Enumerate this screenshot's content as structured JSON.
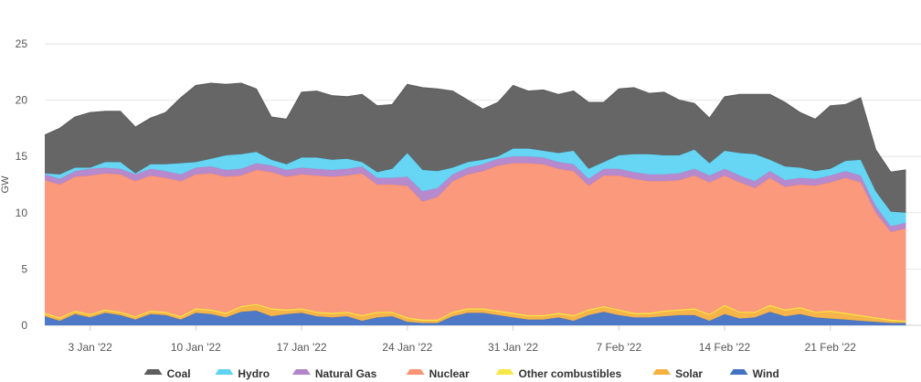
{
  "chart_data": {
    "type": "area",
    "stacked": true,
    "ylabel": "GW",
    "ylim": [
      0,
      25
    ],
    "y_ticks": [
      0,
      5,
      10,
      15,
      20,
      25
    ],
    "grid": true,
    "legend_position": "bottom",
    "x_range": [
      "2021-12-31",
      "2022-02-27"
    ],
    "x_ticks": [
      {
        "date": "2022-01-03",
        "label": "3 Jan '22"
      },
      {
        "date": "2022-01-10",
        "label": "10 Jan '22"
      },
      {
        "date": "2022-01-17",
        "label": "17 Jan '22"
      },
      {
        "date": "2022-01-24",
        "label": "24 Jan '22"
      },
      {
        "date": "2022-01-31",
        "label": "31 Jan '22"
      },
      {
        "date": "2022-02-07",
        "label": "7 Feb '22"
      },
      {
        "date": "2022-02-14",
        "label": "14 Feb '22"
      },
      {
        "date": "2022-02-21",
        "label": "21 Feb '22"
      }
    ],
    "x": [
      "2021-12-31",
      "2022-01-01",
      "2022-01-02",
      "2022-01-03",
      "2022-01-04",
      "2022-01-05",
      "2022-01-06",
      "2022-01-07",
      "2022-01-08",
      "2022-01-09",
      "2022-01-10",
      "2022-01-11",
      "2022-01-12",
      "2022-01-13",
      "2022-01-14",
      "2022-01-15",
      "2022-01-16",
      "2022-01-17",
      "2022-01-18",
      "2022-01-19",
      "2022-01-20",
      "2022-01-21",
      "2022-01-22",
      "2022-01-23",
      "2022-01-24",
      "2022-01-25",
      "2022-01-26",
      "2022-01-27",
      "2022-01-28",
      "2022-01-29",
      "2022-01-30",
      "2022-01-31",
      "2022-02-01",
      "2022-02-02",
      "2022-02-03",
      "2022-02-04",
      "2022-02-05",
      "2022-02-06",
      "2022-02-07",
      "2022-02-08",
      "2022-02-09",
      "2022-02-10",
      "2022-02-11",
      "2022-02-12",
      "2022-02-13",
      "2022-02-14",
      "2022-02-15",
      "2022-02-16",
      "2022-02-17",
      "2022-02-18",
      "2022-02-19",
      "2022-02-20",
      "2022-02-21",
      "2022-02-22",
      "2022-02-23",
      "2022-02-24",
      "2022-02-25",
      "2022-02-26"
    ],
    "series": [
      {
        "name": "Wind",
        "color": "#4472c4",
        "values": [
          0.8,
          0.4,
          1.0,
          0.7,
          1.1,
          0.9,
          0.5,
          1.0,
          0.9,
          0.5,
          1.1,
          1.0,
          0.7,
          1.2,
          1.3,
          0.8,
          1.0,
          1.1,
          0.8,
          0.7,
          0.8,
          0.4,
          0.7,
          0.8,
          0.3,
          0.2,
          0.2,
          0.8,
          1.1,
          1.1,
          0.9,
          0.7,
          0.5,
          0.5,
          0.7,
          0.4,
          0.9,
          1.2,
          0.9,
          0.7,
          0.7,
          0.8,
          0.9,
          0.9,
          0.4,
          1.0,
          0.6,
          0.7,
          1.2,
          0.8,
          1.0,
          0.7,
          0.6,
          0.5,
          0.4,
          0.3,
          0.2,
          0.2
        ]
      },
      {
        "name": "Solar",
        "color": "#f5b041",
        "values": [
          0.2,
          0.2,
          0.2,
          0.2,
          0.2,
          0.2,
          0.2,
          0.2,
          0.2,
          0.2,
          0.3,
          0.3,
          0.3,
          0.4,
          0.5,
          0.6,
          0.3,
          0.3,
          0.3,
          0.3,
          0.3,
          0.4,
          0.4,
          0.3,
          0.3,
          0.2,
          0.2,
          0.3,
          0.3,
          0.3,
          0.3,
          0.3,
          0.3,
          0.3,
          0.3,
          0.4,
          0.4,
          0.4,
          0.4,
          0.3,
          0.3,
          0.4,
          0.4,
          0.5,
          0.5,
          0.7,
          0.5,
          0.4,
          0.5,
          0.5,
          0.5,
          0.4,
          0.6,
          0.5,
          0.4,
          0.3,
          0.2,
          0.1
        ]
      },
      {
        "name": "Other combustibles",
        "color": "#f7e84a",
        "values": [
          0.1,
          0.1,
          0.1,
          0.1,
          0.1,
          0.1,
          0.1,
          0.1,
          0.1,
          0.1,
          0.1,
          0.1,
          0.1,
          0.1,
          0.1,
          0.1,
          0.1,
          0.1,
          0.1,
          0.1,
          0.1,
          0.1,
          0.1,
          0.1,
          0.1,
          0.1,
          0.1,
          0.1,
          0.1,
          0.1,
          0.1,
          0.1,
          0.1,
          0.1,
          0.1,
          0.1,
          0.1,
          0.1,
          0.1,
          0.1,
          0.1,
          0.1,
          0.1,
          0.1,
          0.1,
          0.1,
          0.1,
          0.1,
          0.1,
          0.1,
          0.1,
          0.1,
          0.1,
          0.1,
          0.1,
          0.1,
          0.1,
          0.1
        ]
      },
      {
        "name": "Nuclear",
        "color": "#fa9474",
        "values": [
          11.8,
          11.8,
          11.9,
          12.3,
          12.1,
          12.2,
          12.0,
          12.0,
          11.9,
          12.0,
          11.9,
          12.1,
          12.1,
          11.6,
          11.9,
          12.1,
          11.8,
          11.9,
          12.1,
          12.1,
          12.1,
          12.6,
          11.3,
          11.3,
          11.7,
          10.5,
          10.9,
          11.6,
          11.9,
          12.2,
          12.9,
          13.3,
          13.5,
          13.4,
          12.8,
          12.8,
          11.0,
          11.6,
          11.9,
          11.9,
          11.7,
          11.5,
          11.5,
          11.8,
          11.7,
          11.5,
          11.5,
          11.0,
          11.3,
          10.9,
          10.9,
          11.2,
          11.4,
          12.0,
          11.8,
          9.3,
          7.8,
          8.2
        ]
      },
      {
        "name": "Natural Gas",
        "color": "#b284c9",
        "values": [
          0.5,
          0.5,
          0.5,
          0.6,
          0.5,
          0.5,
          0.6,
          0.6,
          0.6,
          0.6,
          0.6,
          0.6,
          0.6,
          0.6,
          0.6,
          0.6,
          0.6,
          0.6,
          0.6,
          0.6,
          0.6,
          0.6,
          0.6,
          0.6,
          0.8,
          0.9,
          0.8,
          0.6,
          0.6,
          0.6,
          0.6,
          0.6,
          0.6,
          0.6,
          0.6,
          0.6,
          0.6,
          0.6,
          0.6,
          0.6,
          0.6,
          0.6,
          0.6,
          0.6,
          0.6,
          0.6,
          0.6,
          0.6,
          0.6,
          0.6,
          0.6,
          0.6,
          0.6,
          0.6,
          0.6,
          0.6,
          0.5,
          0.5
        ]
      },
      {
        "name": "Hydro",
        "color": "#5fd3f3",
        "values": [
          0.1,
          0.4,
          0.3,
          0.1,
          0.5,
          0.6,
          0.1,
          0.4,
          0.6,
          1.0,
          0.5,
          0.7,
          1.3,
          1.3,
          1.0,
          0.5,
          0.5,
          0.9,
          1.0,
          0.9,
          0.9,
          0.4,
          0.5,
          0.8,
          2.1,
          1.9,
          1.5,
          0.6,
          0.5,
          0.4,
          0.2,
          0.7,
          0.7,
          0.6,
          0.8,
          1.2,
          0.9,
          0.6,
          1.2,
          1.6,
          1.8,
          1.7,
          1.6,
          1.7,
          1.1,
          1.6,
          2.0,
          2.4,
          1.0,
          1.2,
          0.9,
          0.7,
          0.6,
          0.9,
          1.4,
          1.3,
          1.3,
          0.9
        ]
      },
      {
        "name": "Coal",
        "color": "#5e5e5e",
        "values": [
          3.4,
          4.1,
          4.5,
          4.9,
          4.5,
          4.5,
          4.1,
          4.1,
          4.6,
          5.8,
          6.8,
          6.7,
          6.3,
          6.3,
          5.6,
          3.8,
          4.0,
          5.8,
          5.9,
          5.7,
          5.5,
          6.0,
          5.9,
          5.7,
          6.1,
          7.3,
          7.3,
          6.8,
          5.5,
          4.5,
          4.8,
          5.6,
          5.1,
          5.4,
          5.2,
          5.3,
          5.9,
          5.3,
          5.9,
          5.9,
          5.4,
          5.6,
          4.9,
          4.1,
          4.0,
          4.8,
          5.2,
          5.3,
          5.8,
          5.7,
          4.9,
          4.6,
          5.6,
          5.0,
          5.5,
          3.7,
          3.5,
          3.8
        ]
      }
    ]
  }
}
